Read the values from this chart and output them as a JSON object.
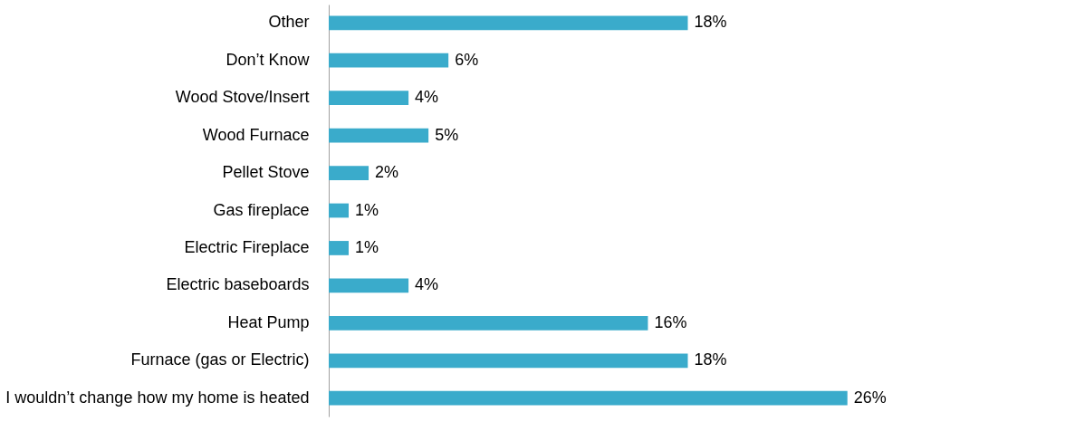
{
  "chart_data": {
    "type": "bar",
    "orientation": "horizontal",
    "categories": [
      "Other",
      "Don’t Know",
      "Wood Stove/Insert",
      "Wood Furnace",
      "Pellet Stove",
      "Gas fireplace",
      "Electric Fireplace",
      "Electric baseboards",
      "Heat Pump",
      "Furnace (gas or Electric)",
      "I wouldn’t change how my home is heated"
    ],
    "values": [
      18,
      6,
      4,
      5,
      2,
      1,
      1,
      4,
      16,
      18,
      26
    ],
    "value_labels": [
      "18%",
      "6%",
      "4%",
      "5%",
      "2%",
      "1%",
      "1%",
      "4%",
      "16%",
      "18%",
      "26%"
    ],
    "color": "#3aabcb",
    "grid": false
  }
}
